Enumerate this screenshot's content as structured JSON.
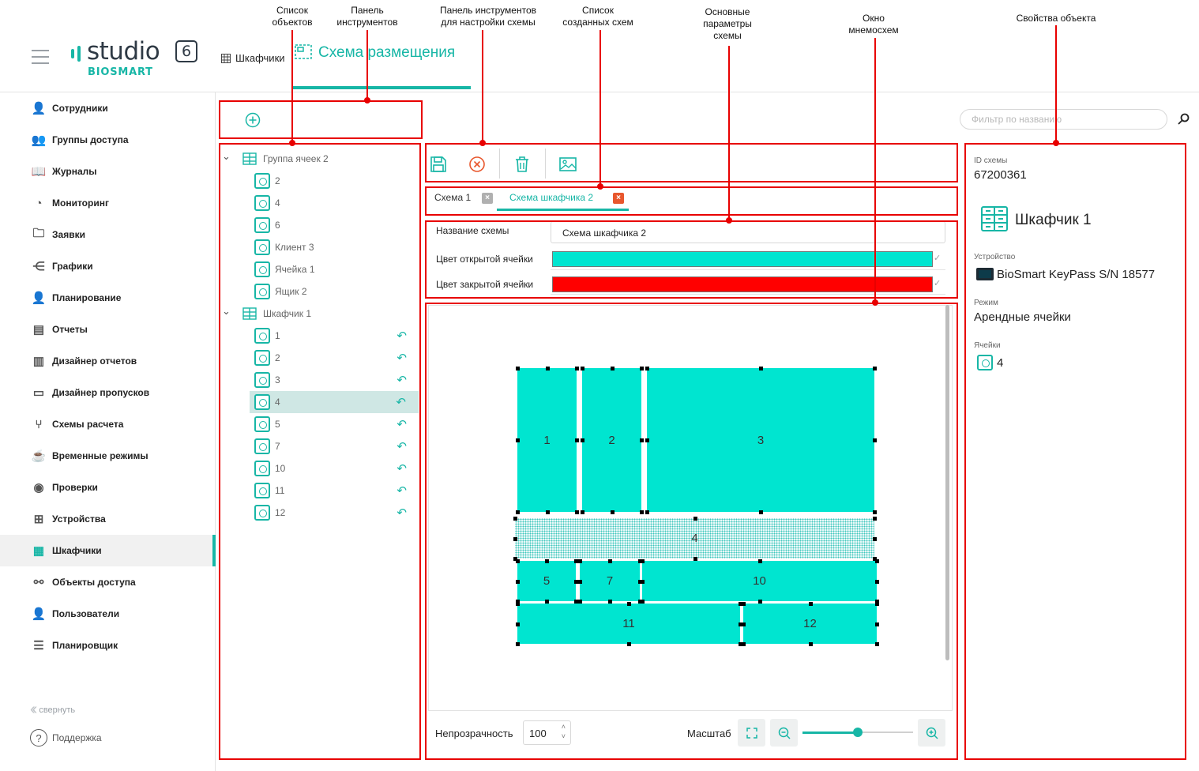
{
  "annotations": {
    "object_list": "Список\nобъектов",
    "toolbar_panel": "Панель\nинструментов",
    "scheme_toolbar": "Панель инструментов\nдля настройки схемы",
    "schemes_list": "Список\nсозданных схем",
    "main_params": "Основные\nпараметры\nсхемы",
    "mimic_window": "Окно\nмнемосхем",
    "object_props": "Свойства объекта"
  },
  "header": {
    "logo_word": "studio",
    "logo_number": "6",
    "logo_sub": "BIOSMART",
    "breadcrumb": "Шкафчики",
    "active_tab": "Схема размещения"
  },
  "sidebar": {
    "items": [
      {
        "label": "Сотрудники",
        "icon": "user-icon"
      },
      {
        "label": "Группы доступа",
        "icon": "user-group-icon"
      },
      {
        "label": "Журналы",
        "icon": "book-icon"
      },
      {
        "label": "Мониторинг",
        "icon": "gauge-icon"
      },
      {
        "label": "Заявки",
        "icon": "folder-plus-icon"
      },
      {
        "label": "Графики",
        "icon": "share-icon"
      },
      {
        "label": "Планирование",
        "icon": "user-clock-icon"
      },
      {
        "label": "Отчеты",
        "icon": "report-icon"
      },
      {
        "label": "Дизайнер отчетов",
        "icon": "report-designer-icon"
      },
      {
        "label": "Дизайнер пропусков",
        "icon": "id-card-icon"
      },
      {
        "label": "Схемы расчета",
        "icon": "branch-icon"
      },
      {
        "label": "Временные режимы",
        "icon": "cup-icon"
      },
      {
        "label": "Проверки",
        "icon": "eye-icon"
      },
      {
        "label": "Устройства",
        "icon": "network-icon"
      },
      {
        "label": "Шкафчики",
        "icon": "locker-icon",
        "active": true
      },
      {
        "label": "Объекты доступа",
        "icon": "hub-icon"
      },
      {
        "label": "Пользователи",
        "icon": "user-add-icon"
      },
      {
        "label": "Планировщик",
        "icon": "list-icon"
      }
    ],
    "collapse": "свернуть",
    "support": "Поддержка"
  },
  "tree": {
    "groups": [
      {
        "label": "Группа ячеек 2",
        "children": [
          "2",
          "4",
          "6",
          "Клиент 3",
          "Ячейка 1",
          "Ящик 2"
        ]
      },
      {
        "label": "Шкафчик 1",
        "children": [
          "1",
          "2",
          "3",
          "4",
          "5",
          "7",
          "10",
          "11",
          "12"
        ],
        "selected": "4"
      }
    ]
  },
  "scheme_tabs": [
    "Схема 1",
    "Схема шкафчика 2"
  ],
  "params": {
    "name_label": "Название схемы",
    "name_value": "Схема шкафчика 2",
    "open_label": "Цвет открытой ячейки",
    "open_color": "#00e5d0",
    "closed_label": "Цвет закрытой ячейки",
    "closed_color": "#ff0000"
  },
  "canvas_cells": [
    "1",
    "2",
    "3",
    "4",
    "5",
    "7",
    "10",
    "11",
    "12"
  ],
  "footer": {
    "opacity_label": "Непрозрачность",
    "opacity_value": "100",
    "scale_label": "Масштаб",
    "zoom_level": 0.5
  },
  "filter_placeholder": "Фильтр по названию",
  "properties": {
    "scheme_id_label": "ID схемы",
    "scheme_id": "67200361",
    "object_name": "Шкафчик 1",
    "device_label": "Устройство",
    "device": "BioSmart KeyPass S/N 18577",
    "mode_label": "Режим",
    "mode": "Арендные ячейки",
    "cells_label": "Ячейки",
    "cell": "4"
  },
  "colors": {
    "accent": "#17b6a6",
    "annotation": "#e80000",
    "cell_open": "#00e5d0"
  }
}
